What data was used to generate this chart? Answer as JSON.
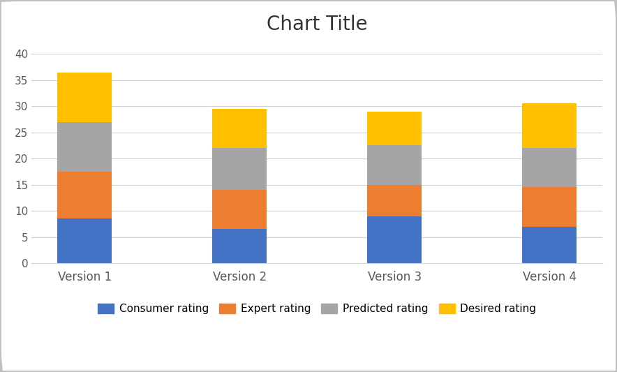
{
  "categories": [
    "Version 1",
    "Version 2",
    "Version 3",
    "Version 4"
  ],
  "series": {
    "Consumer rating": [
      8.5,
      6.5,
      9.0,
      7.0
    ],
    "Expert rating": [
      9.0,
      7.5,
      6.0,
      7.5
    ],
    "Predicted rating": [
      9.5,
      8.0,
      7.5,
      7.5
    ],
    "Desired rating": [
      9.5,
      7.5,
      6.5,
      8.5
    ]
  },
  "colors": {
    "Consumer rating": "#4472C4",
    "Expert rating": "#ED7D31",
    "Predicted rating": "#A5A5A5",
    "Desired rating": "#FFC000"
  },
  "title": "Chart Title",
  "title_fontsize": 20,
  "ylim": [
    0,
    42
  ],
  "yticks": [
    0,
    5,
    10,
    15,
    20,
    25,
    30,
    35,
    40
  ],
  "bar_width": 0.35,
  "background_color": "#FFFFFF",
  "grid_color": "#D3D3D3",
  "border_color": "#C0C0C0",
  "tick_label_color": "#595959",
  "legend_order": [
    "Consumer rating",
    "Expert rating",
    "Predicted rating",
    "Desired rating"
  ]
}
